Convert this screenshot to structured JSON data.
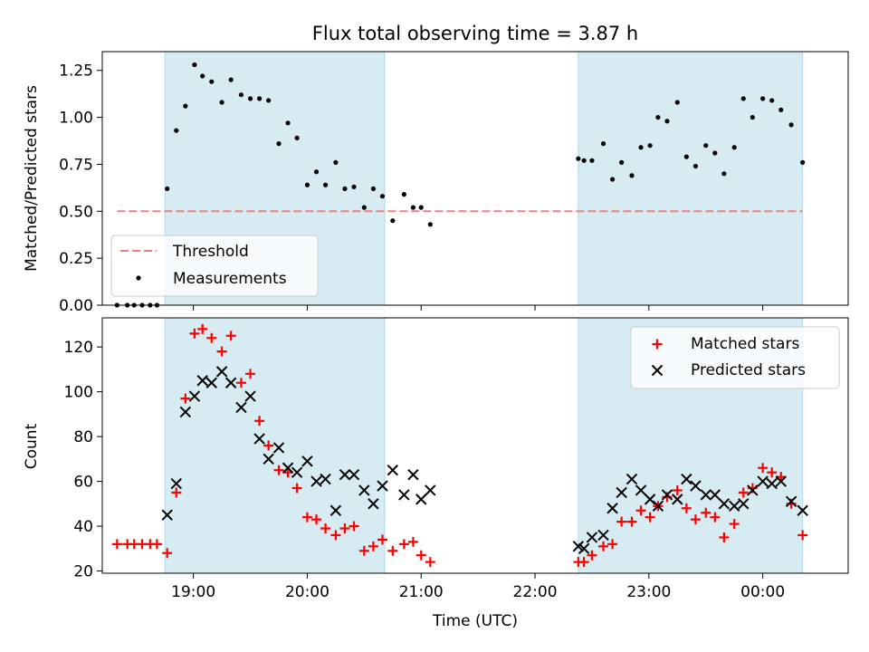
{
  "title": "Flux total observing time = 3.87 h",
  "colors": {
    "shade": "#add8e6",
    "threshold": "#f08080",
    "measurement": "#000000",
    "matched": "#ff0000",
    "predicted": "#000000"
  },
  "chart_data": [
    {
      "type": "scatter",
      "ylabel": "Matched/Predicted stars",
      "ylim": [
        0,
        1.35
      ],
      "xlim_hours": [
        18.2,
        24.75
      ],
      "yticks": [
        0.0,
        0.25,
        0.5,
        0.75,
        1.0,
        1.25
      ],
      "ytick_labels": [
        "0.00",
        "0.25",
        "0.50",
        "0.75",
        "1.00",
        "1.25"
      ],
      "shaded_intervals_hours": [
        [
          18.75,
          20.68
        ],
        [
          22.38,
          24.35
        ]
      ],
      "threshold": {
        "name": "Threshold",
        "value": 0.5,
        "x_hours": [
          18.33,
          24.35
        ]
      },
      "legend": {
        "placement": "lower-left",
        "entries": [
          "Threshold",
          "Measurements"
        ]
      },
      "series": [
        {
          "name": "Measurements",
          "marker": "dot",
          "x_hours": [
            18.33,
            18.42,
            18.48,
            18.55,
            18.62,
            18.68,
            18.77,
            18.85,
            18.93,
            19.01,
            19.08,
            19.16,
            19.25,
            19.33,
            19.42,
            19.5,
            19.58,
            19.66,
            19.75,
            19.83,
            19.91,
            20.0,
            20.08,
            20.16,
            20.25,
            20.33,
            20.41,
            20.5,
            20.58,
            20.66,
            20.75,
            20.85,
            20.93,
            21.0,
            21.08,
            22.38,
            22.43,
            22.5,
            22.6,
            22.68,
            22.76,
            22.85,
            22.93,
            23.01,
            23.08,
            23.16,
            23.25,
            23.33,
            23.41,
            23.5,
            23.58,
            23.66,
            23.75,
            23.83,
            23.91,
            24.0,
            24.08,
            24.16,
            24.25,
            24.35
          ],
          "values": [
            0.0,
            0.0,
            0.0,
            0.0,
            0.0,
            0.0,
            0.62,
            0.93,
            1.06,
            1.28,
            1.22,
            1.19,
            1.08,
            1.2,
            1.12,
            1.1,
            1.1,
            1.09,
            0.86,
            0.97,
            0.89,
            0.64,
            0.71,
            0.64,
            0.76,
            0.62,
            0.63,
            0.52,
            0.62,
            0.58,
            0.45,
            0.59,
            0.52,
            0.52,
            0.43,
            0.78,
            0.77,
            0.77,
            0.86,
            0.67,
            0.76,
            0.69,
            0.84,
            0.85,
            1.0,
            0.98,
            1.08,
            0.79,
            0.74,
            0.85,
            0.81,
            0.7,
            0.84,
            1.1,
            1.0,
            1.1,
            1.09,
            1.04,
            0.96,
            0.76
          ]
        }
      ]
    },
    {
      "type": "scatter",
      "xlabel": "Time (UTC)",
      "ylabel": "Count",
      "ylim": [
        19,
        133
      ],
      "xlim_hours": [
        18.2,
        24.75
      ],
      "yticks": [
        20,
        40,
        60,
        80,
        100,
        120
      ],
      "xtick_hours": [
        19,
        20,
        21,
        22,
        23,
        24
      ],
      "xtick_labels": [
        "19:00",
        "20:00",
        "21:00",
        "22:00",
        "23:00",
        "00:00"
      ],
      "shaded_intervals_hours": [
        [
          18.75,
          20.68
        ],
        [
          22.38,
          24.35
        ]
      ],
      "legend": {
        "placement": "upper-right",
        "entries": [
          "Matched stars",
          "Predicted stars"
        ]
      },
      "series": [
        {
          "name": "Matched stars",
          "marker": "plus",
          "x_hours": [
            18.33,
            18.42,
            18.48,
            18.55,
            18.62,
            18.68,
            18.77,
            18.85,
            18.93,
            19.01,
            19.08,
            19.16,
            19.25,
            19.33,
            19.42,
            19.5,
            19.58,
            19.66,
            19.75,
            19.83,
            19.91,
            20.0,
            20.08,
            20.16,
            20.25,
            20.33,
            20.41,
            20.5,
            20.58,
            20.66,
            20.75,
            20.85,
            20.93,
            21.0,
            21.08,
            22.38,
            22.43,
            22.5,
            22.6,
            22.68,
            22.76,
            22.85,
            22.93,
            23.01,
            23.08,
            23.16,
            23.25,
            23.33,
            23.41,
            23.5,
            23.58,
            23.66,
            23.75,
            23.83,
            23.91,
            24.0,
            24.08,
            24.16,
            24.25,
            24.35
          ],
          "values": [
            32,
            32,
            32,
            32,
            32,
            32,
            28,
            55,
            97,
            126,
            128,
            124,
            118,
            125,
            104,
            108,
            87,
            76,
            65,
            64,
            57,
            44,
            43,
            39,
            36,
            39,
            40,
            29,
            31,
            34,
            29,
            32,
            33,
            27,
            24,
            24,
            24,
            27,
            31,
            32,
            42,
            42,
            47,
            44,
            49,
            53,
            56,
            48,
            43,
            46,
            44,
            35,
            41,
            55,
            57,
            66,
            64,
            62,
            50,
            36
          ]
        },
        {
          "name": "Predicted stars",
          "marker": "x",
          "x_hours": [
            18.77,
            18.85,
            18.93,
            19.01,
            19.08,
            19.16,
            19.25,
            19.33,
            19.42,
            19.5,
            19.58,
            19.66,
            19.75,
            19.83,
            19.91,
            20.0,
            20.08,
            20.16,
            20.25,
            20.33,
            20.41,
            20.5,
            20.58,
            20.66,
            20.75,
            20.85,
            20.93,
            21.0,
            21.08,
            22.38,
            22.43,
            22.5,
            22.6,
            22.68,
            22.76,
            22.85,
            22.93,
            23.01,
            23.08,
            23.16,
            23.25,
            23.33,
            23.41,
            23.5,
            23.58,
            23.66,
            23.75,
            23.83,
            23.91,
            24.0,
            24.08,
            24.16,
            24.25,
            24.35
          ],
          "values": [
            45,
            59,
            91,
            98,
            105,
            104,
            109,
            104,
            93,
            98,
            79,
            70,
            75,
            66,
            64,
            69,
            60,
            61,
            47,
            63,
            63,
            56,
            50,
            58,
            65,
            54,
            63,
            52,
            56,
            31,
            30,
            35,
            36,
            48,
            55,
            61,
            56,
            52,
            49,
            54,
            52,
            61,
            58,
            54,
            54,
            50,
            49,
            50,
            56,
            60,
            59,
            60,
            51,
            47
          ]
        }
      ]
    }
  ]
}
